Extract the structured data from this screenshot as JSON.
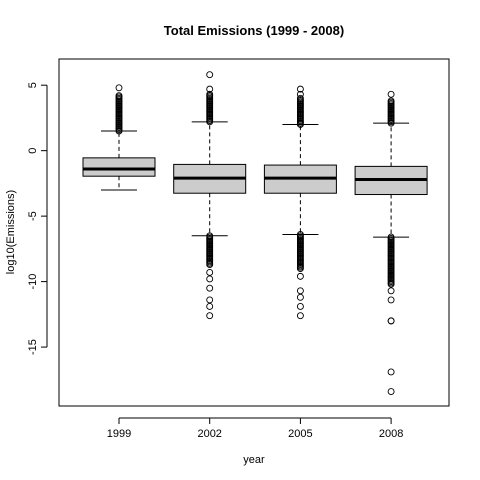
{
  "chart_data": {
    "type": "boxplot",
    "title": "Total Emissions (1999 - 2008)",
    "xlabel": "year",
    "ylabel": "log10(Emissions)",
    "categories": [
      "1999",
      "2002",
      "2005",
      "2008"
    ],
    "ylim": [
      -19.5,
      7.0
    ],
    "yticks": [
      5,
      0,
      -5,
      -10,
      -15
    ],
    "ytick_labels": [
      "5",
      "0",
      "-5",
      "-10",
      "-15"
    ],
    "grid": false,
    "box_fill": "#cccccc",
    "boxes": [
      {
        "year": "1999",
        "min": -3.0,
        "q1": -1.95,
        "median": -1.4,
        "q3": -0.55,
        "max": 1.5,
        "outliers_high_range": [
          1.5,
          4.2
        ],
        "outliers_high_extra": [
          4.8
        ],
        "outliers_low_range": null,
        "outliers_low_extra": []
      },
      {
        "year": "2002",
        "min": -6.5,
        "q1": -3.25,
        "median": -2.1,
        "q3": -1.05,
        "max": 2.2,
        "outliers_high_range": [
          2.2,
          4.3
        ],
        "outliers_high_extra": [
          4.7,
          5.8
        ],
        "outliers_low_range": [
          -8.7,
          -6.5
        ],
        "outliers_low_extra": [
          -9.3,
          -9.8,
          -10.5,
          -11.4,
          -11.9,
          -12.6
        ]
      },
      {
        "year": "2005",
        "min": -6.4,
        "q1": -3.25,
        "median": -2.1,
        "q3": -1.1,
        "max": 2.0,
        "outliers_high_range": [
          2.0,
          4.0
        ],
        "outliers_high_extra": [
          4.3,
          4.7
        ],
        "outliers_low_range": [
          -9.0,
          -6.4
        ],
        "outliers_low_extra": [
          -9.6,
          -10.7,
          -11.2,
          -11.9,
          -12.6
        ]
      },
      {
        "year": "2008",
        "min": -6.6,
        "q1": -3.35,
        "median": -2.2,
        "q3": -1.2,
        "max": 2.1,
        "outliers_high_range": [
          2.1,
          3.8
        ],
        "outliers_high_extra": [
          4.3
        ],
        "outliers_low_range": [
          -10.2,
          -6.6
        ],
        "outliers_low_extra": [
          -10.7,
          -11.4,
          -13.0,
          -13.0,
          -16.9,
          -18.4
        ]
      }
    ]
  }
}
